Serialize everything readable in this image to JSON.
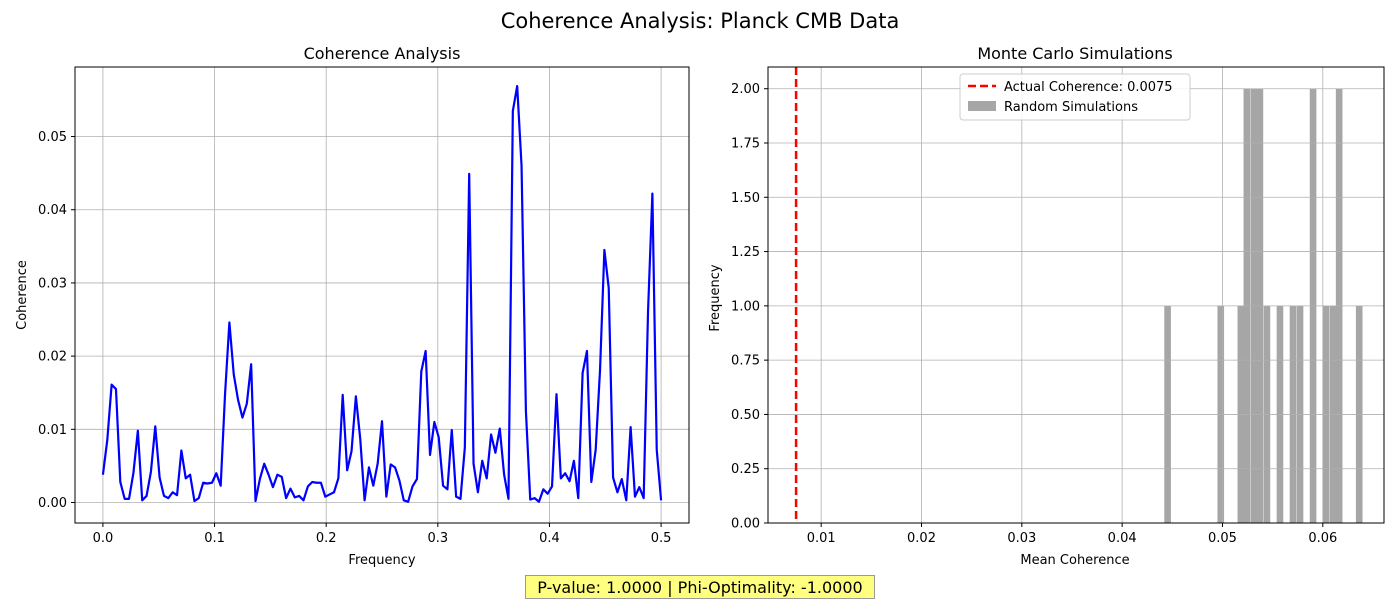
{
  "figure": {
    "suptitle": "Coherence Analysis: Planck CMB Data",
    "annotation": "P-value: 1.0000 | Phi-Optimality: -1.0000",
    "annotation_bg": "#ffff7f"
  },
  "chart_data": [
    {
      "type": "line",
      "title": "Coherence Analysis",
      "xlabel": "Frequency",
      "ylabel": "Coherence",
      "xlim": [
        -0.025,
        0.525
      ],
      "ylim": [
        -0.0028,
        0.0595
      ],
      "xticks": [
        0.0,
        0.1,
        0.2,
        0.3,
        0.4,
        0.5
      ],
      "xtick_labels": [
        "0.0",
        "0.1",
        "0.2",
        "0.3",
        "0.4",
        "0.5"
      ],
      "yticks": [
        0.0,
        0.01,
        0.02,
        0.03,
        0.04,
        0.05
      ],
      "ytick_labels": [
        "0.00",
        "0.01",
        "0.02",
        "0.03",
        "0.04",
        "0.05"
      ],
      "grid": true,
      "color": "#0000ff",
      "x": [
        0.0,
        0.0039,
        0.0078,
        0.0117,
        0.0156,
        0.0195,
        0.0234,
        0.0273,
        0.0313,
        0.0352,
        0.0391,
        0.043,
        0.0469,
        0.0508,
        0.0547,
        0.0586,
        0.0625,
        0.0664,
        0.0703,
        0.0742,
        0.0781,
        0.082,
        0.0859,
        0.0898,
        0.0938,
        0.0977,
        0.1016,
        0.1055,
        0.1094,
        0.1133,
        0.1172,
        0.1211,
        0.125,
        0.1289,
        0.1328,
        0.1367,
        0.1406,
        0.1445,
        0.1484,
        0.1523,
        0.1563,
        0.1602,
        0.1641,
        0.168,
        0.1719,
        0.1758,
        0.1797,
        0.1836,
        0.1875,
        0.1914,
        0.1953,
        0.1992,
        0.2031,
        0.207,
        0.2109,
        0.2148,
        0.2188,
        0.2227,
        0.2266,
        0.2305,
        0.2344,
        0.2383,
        0.2422,
        0.2461,
        0.25,
        0.2539,
        0.2578,
        0.2617,
        0.2656,
        0.2695,
        0.2734,
        0.2773,
        0.2813,
        0.2852,
        0.2891,
        0.293,
        0.2969,
        0.3008,
        0.3047,
        0.3086,
        0.3125,
        0.3164,
        0.3203,
        0.3242,
        0.3281,
        0.332,
        0.3359,
        0.3398,
        0.3438,
        0.3477,
        0.3516,
        0.3555,
        0.3594,
        0.3633,
        0.3672,
        0.3711,
        0.375,
        0.3789,
        0.3828,
        0.3867,
        0.3906,
        0.3945,
        0.3984,
        0.4023,
        0.4063,
        0.4102,
        0.4141,
        0.418,
        0.4219,
        0.4258,
        0.4297,
        0.4336,
        0.4375,
        0.4414,
        0.4453,
        0.4492,
        0.4531,
        0.457,
        0.4609,
        0.4648,
        0.4688,
        0.4727,
        0.4766,
        0.4805,
        0.4844,
        0.4883,
        0.4922,
        0.4961,
        0.5
      ],
      "y": [
        0.0038,
        0.0085,
        0.0161,
        0.0155,
        0.0028,
        0.0005,
        0.0005,
        0.004,
        0.0098,
        0.0003,
        0.0009,
        0.0042,
        0.0104,
        0.0034,
        0.0009,
        0.0006,
        0.0014,
        0.001,
        0.0071,
        0.0033,
        0.0038,
        0.0002,
        0.0006,
        0.0027,
        0.0026,
        0.0027,
        0.004,
        0.0023,
        0.0148,
        0.0246,
        0.0175,
        0.014,
        0.0116,
        0.0135,
        0.0189,
        0.0002,
        0.0032,
        0.0053,
        0.0038,
        0.0021,
        0.0038,
        0.0035,
        0.0006,
        0.0019,
        0.0007,
        0.0009,
        0.0003,
        0.0022,
        0.0028,
        0.0027,
        0.0027,
        0.0008,
        0.0011,
        0.0014,
        0.0033,
        0.0147,
        0.0044,
        0.007,
        0.0145,
        0.0087,
        0.0003,
        0.0048,
        0.0023,
        0.0053,
        0.0111,
        0.0008,
        0.0052,
        0.0048,
        0.003,
        0.0003,
        0.0001,
        0.0022,
        0.0032,
        0.0179,
        0.0207,
        0.0065,
        0.011,
        0.0089,
        0.0023,
        0.0018,
        0.0099,
        0.0008,
        0.0005,
        0.0075,
        0.0449,
        0.0053,
        0.0014,
        0.0057,
        0.0033,
        0.0093,
        0.0068,
        0.0101,
        0.0038,
        0.0005,
        0.0535,
        0.0569,
        0.046,
        0.0125,
        0.0004,
        0.0006,
        0.0001,
        0.0018,
        0.0012,
        0.0022,
        0.0148,
        0.0033,
        0.004,
        0.0029,
        0.0057,
        0.0006,
        0.0177,
        0.0207,
        0.0028,
        0.0072,
        0.0181,
        0.0345,
        0.0293,
        0.0034,
        0.0014,
        0.0032,
        0.0003,
        0.0103,
        0.0008,
        0.0021,
        0.0006,
        0.0261,
        0.0422,
        0.0072,
        0.0003
      ]
    },
    {
      "type": "bar",
      "title": "Monte Carlo Simulations",
      "xlabel": "Mean Coherence",
      "ylabel": "Frequency",
      "xlim": [
        0.0047,
        0.0661
      ],
      "ylim": [
        0.0,
        2.1
      ],
      "xticks": [
        0.01,
        0.02,
        0.03,
        0.04,
        0.05,
        0.06
      ],
      "xtick_labels": [
        "0.01",
        "0.02",
        "0.03",
        "0.04",
        "0.05",
        "0.06"
      ],
      "yticks": [
        0.0,
        0.25,
        0.5,
        0.75,
        1.0,
        1.25,
        1.5,
        1.75,
        2.0
      ],
      "ytick_labels": [
        "0.00",
        "0.25",
        "0.50",
        "0.75",
        "1.00",
        "1.25",
        "1.50",
        "1.75",
        "2.00"
      ],
      "grid": true,
      "bar_color": "#a6a6a6",
      "bin_width": 0.00066,
      "bin_starts": [
        0.0442,
        0.0495,
        0.0515,
        0.0521,
        0.0528,
        0.0534,
        0.0541,
        0.0554,
        0.0567,
        0.0574,
        0.0587,
        0.06,
        0.0607,
        0.0613,
        0.0633
      ],
      "counts": [
        1,
        1,
        1,
        2,
        2,
        2,
        1,
        1,
        1,
        1,
        2,
        1,
        1,
        2,
        1
      ],
      "reference_line": {
        "x": 0.0075,
        "color": "#ff0000",
        "label": "Actual Coherence: 0.0075"
      },
      "legend": {
        "placement": "upper-center",
        "entries": [
          {
            "label": "Actual Coherence: 0.0075",
            "kind": "dashed-line",
            "color": "#ff0000"
          },
          {
            "label": "Random Simulations",
            "kind": "patch",
            "color": "#a6a6a6"
          }
        ]
      }
    }
  ]
}
